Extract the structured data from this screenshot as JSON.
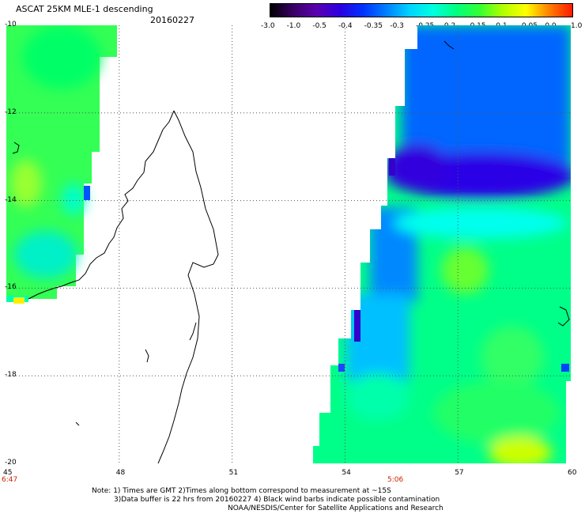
{
  "title": "ASCAT 25KM MLE-1 descending",
  "date": "20160227",
  "colorbar": {
    "labels": [
      "-3.0",
      "-1.0",
      "-0.5",
      "-0.4",
      "-0.35",
      "-0.3",
      "-0.25",
      "-0.2",
      "-0.15",
      "-0.1",
      "-0.05",
      "0.0",
      "1.0"
    ],
    "colors": [
      "#000000",
      "#3b0066",
      "#5a00b0",
      "#2a00e0",
      "#0033ff",
      "#0080ff",
      "#00d4ff",
      "#00ffe0",
      "#00ff80",
      "#33ff33",
      "#b0ff00",
      "#ffff00",
      "#ff8000",
      "#ff1a00"
    ]
  },
  "axes": {
    "lat_labels": [
      "-10",
      "-12",
      "-14",
      "-16",
      "-18",
      "-20"
    ],
    "lon_labels": [
      "45",
      "48",
      "51",
      "54",
      "57",
      "60"
    ]
  },
  "times": {
    "left": "6:47",
    "center": "5:06"
  },
  "notes": [
    "Note: 1) Times are GMT 2)Times along bottom correspond to measurement at ~15S",
    "3)Data buffer is 22 hrs from 20160227 4) Black wind barbs indicate possible contamination",
    "NOAA/NESDIS/Center for Satellite Applications and Research"
  ]
}
